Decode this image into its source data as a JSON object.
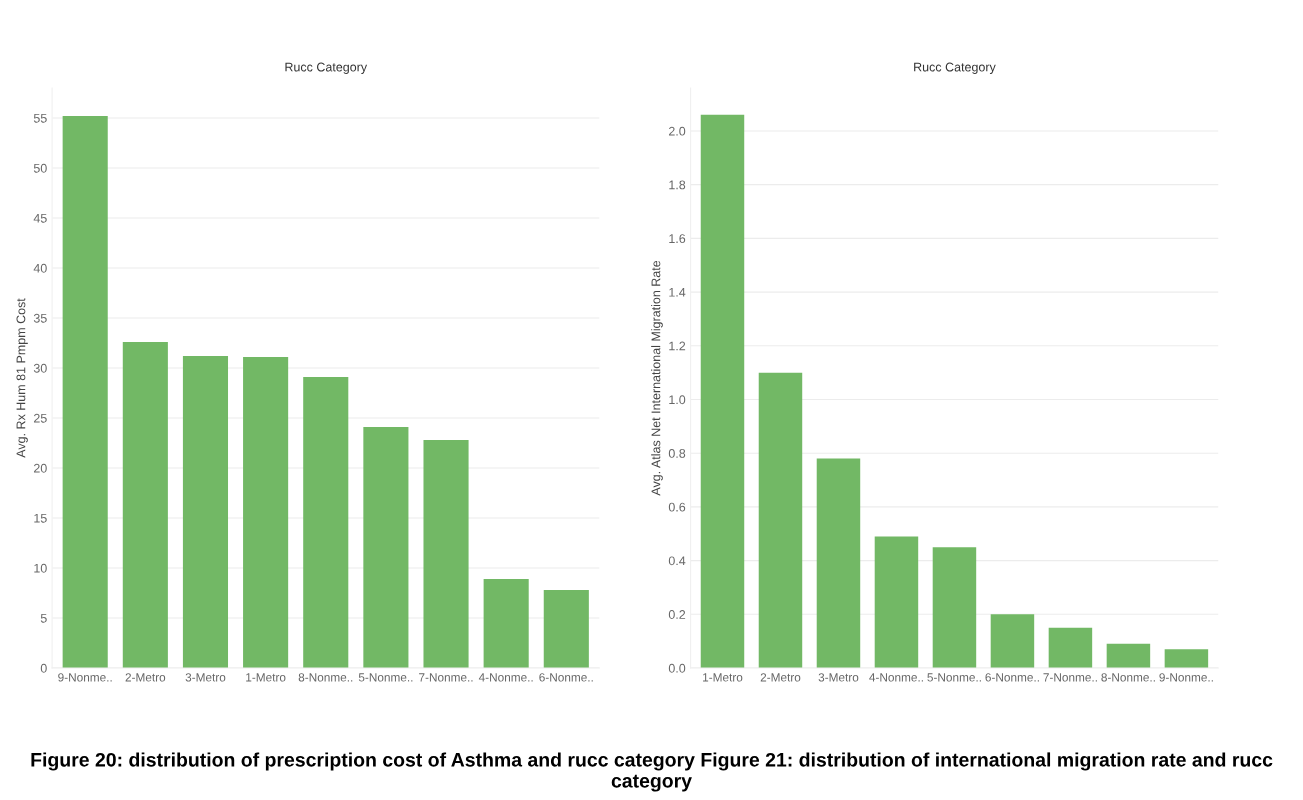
{
  "chart_data": [
    {
      "type": "bar",
      "title": "Rucc Category",
      "ylabel": "Avg. Rx Hum 81 Pmpm Cost",
      "categories": [
        "9-Nonme..",
        "2-Metro",
        "3-Metro",
        "1-Metro",
        "8-Nonme..",
        "5-Nonme..",
        "7-Nonme..",
        "4-Nonme..",
        "6-Nonme.."
      ],
      "values": [
        55.2,
        32.6,
        31.2,
        31.1,
        29.1,
        24.1,
        22.8,
        8.9,
        7.8
      ],
      "color": "#72b865",
      "ylim": [
        0,
        58
      ],
      "yticks": [
        0,
        5,
        10,
        15,
        20,
        25,
        30,
        35,
        40,
        45,
        50,
        55
      ],
      "grid": "y",
      "annotations": [
        "Figure 20: distribution of prescription cost of Asthma and rucc category Figure 21: distribution of international migration rate and rucc category"
      ]
    },
    {
      "type": "bar",
      "title": "Rucc Category",
      "ylabel": "Avg. Atlas Net International Migration Rate",
      "categories": [
        "1-Metro",
        "2-Metro",
        "3-Metro",
        "4-Nonme..",
        "5-Nonme..",
        "6-Nonme..",
        "7-Nonme..",
        "8-Nonme..",
        "9-Nonme.."
      ],
      "values": [
        2.06,
        1.1,
        0.78,
        0.49,
        0.45,
        0.2,
        0.15,
        0.09,
        0.07
      ],
      "color": "#72b865",
      "ylim": [
        0,
        2.16
      ],
      "yticks": [
        {
          "value": 0,
          "label": "0.0"
        },
        {
          "value": 0.2,
          "label": "0.2"
        },
        {
          "value": 0.4,
          "label": "0.4"
        },
        {
          "value": 0.6,
          "label": "0.6"
        },
        {
          "value": 0.8,
          "label": "0.8"
        },
        {
          "value": 1.0,
          "label": "1.0"
        },
        {
          "value": 1.2,
          "label": "1.2"
        },
        {
          "value": 1.4,
          "label": "1.4"
        },
        {
          "value": 1.6,
          "label": "1.6"
        },
        {
          "value": 1.8,
          "label": "1.8"
        },
        {
          "value": 2.0,
          "label": "2.0"
        }
      ],
      "grid": "y"
    }
  ]
}
